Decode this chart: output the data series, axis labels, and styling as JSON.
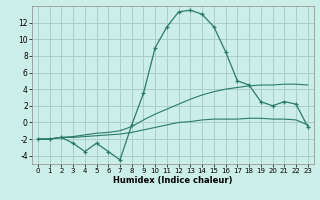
{
  "title": "",
  "xlabel": "Humidex (Indice chaleur)",
  "bg_color": "#cceee8",
  "grid_color": "#aacccc",
  "line_color": "#2a7a6a",
  "xlim": [
    -0.5,
    23.5
  ],
  "ylim": [
    -5.0,
    14.0
  ],
  "xticks": [
    0,
    1,
    2,
    3,
    4,
    5,
    6,
    7,
    8,
    9,
    10,
    11,
    12,
    13,
    14,
    15,
    16,
    17,
    18,
    19,
    20,
    21,
    22,
    23
  ],
  "yticks": [
    -4,
    -2,
    0,
    2,
    4,
    6,
    8,
    10,
    12
  ],
  "line1_x": [
    0,
    1,
    2,
    3,
    4,
    5,
    6,
    7,
    8,
    9,
    10,
    11,
    12,
    13,
    14,
    15,
    16,
    17,
    18,
    19,
    20,
    21,
    22,
    23
  ],
  "line1_y": [
    -2.0,
    -2.0,
    -1.8,
    -2.5,
    -3.5,
    -2.5,
    -3.5,
    -4.5,
    -0.3,
    3.5,
    9.0,
    11.5,
    13.3,
    13.5,
    13.0,
    11.5,
    8.5,
    5.0,
    4.5,
    2.5,
    2.0,
    2.5,
    2.2,
    -0.5
  ],
  "line2_x": [
    0,
    1,
    2,
    3,
    4,
    5,
    6,
    7,
    8,
    9,
    10,
    11,
    12,
    13,
    14,
    15,
    16,
    17,
    18,
    19,
    20,
    21,
    22,
    23
  ],
  "line2_y": [
    -2.0,
    -2.0,
    -1.8,
    -1.7,
    -1.5,
    -1.3,
    -1.2,
    -1.0,
    -0.5,
    0.3,
    1.0,
    1.6,
    2.2,
    2.8,
    3.3,
    3.7,
    4.0,
    4.2,
    4.4,
    4.5,
    4.5,
    4.6,
    4.6,
    4.5
  ],
  "line3_x": [
    0,
    1,
    2,
    3,
    4,
    5,
    6,
    7,
    8,
    9,
    10,
    11,
    12,
    13,
    14,
    15,
    16,
    17,
    18,
    19,
    20,
    21,
    22,
    23
  ],
  "line3_y": [
    -2.0,
    -2.0,
    -1.8,
    -1.8,
    -1.7,
    -1.6,
    -1.5,
    -1.4,
    -1.2,
    -0.9,
    -0.6,
    -0.3,
    0.0,
    0.1,
    0.3,
    0.4,
    0.4,
    0.4,
    0.5,
    0.5,
    0.4,
    0.4,
    0.3,
    -0.3
  ]
}
